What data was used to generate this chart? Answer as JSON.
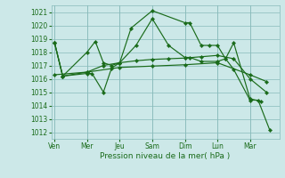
{
  "xlabel": "Pression niveau de la mer( hPa )",
  "background_color": "#cce8e8",
  "grid_color": "#88bbbb",
  "line_color": "#1a6b1a",
  "ylim": [
    1011.5,
    1021.5
  ],
  "yticks": [
    1012,
    1013,
    1014,
    1015,
    1016,
    1017,
    1018,
    1019,
    1020,
    1021
  ],
  "day_labels": [
    "Ven",
    "Mer",
    "Jeu",
    "Sam",
    "Dim",
    "Lun",
    "Mar"
  ],
  "day_positions": [
    0,
    2,
    4,
    6,
    8,
    10,
    12
  ],
  "xlim": [
    -0.2,
    13.8
  ],
  "series": [
    {
      "x": [
        0,
        0.5,
        2,
        2.5,
        3.0,
        3.5,
        4.0,
        4.7,
        6.0,
        8.0,
        8.3,
        9.0,
        9.5,
        10.0,
        10.5,
        11.0,
        12.0,
        12.7
      ],
      "y": [
        1018.7,
        1016.2,
        1018.0,
        1018.8,
        1017.2,
        1017.0,
        1017.2,
        1019.8,
        1021.1,
        1020.2,
        1020.2,
        1018.5,
        1018.5,
        1018.5,
        1017.5,
        1018.7,
        1014.5,
        1014.3
      ]
    },
    {
      "x": [
        0,
        0.5,
        2,
        2.3,
        3.0,
        3.5,
        4.0,
        5.0,
        6.0,
        7.0,
        8.0,
        8.3,
        9.0,
        10.0,
        10.5,
        11.0,
        12.0,
        12.5,
        13.2
      ],
      "y": [
        1018.7,
        1016.2,
        1016.4,
        1016.4,
        1015.0,
        1016.8,
        1017.2,
        1018.5,
        1020.5,
        1018.5,
        1017.6,
        1017.6,
        1017.3,
        1017.3,
        1017.5,
        1016.7,
        1014.4,
        1014.4,
        1012.2
      ]
    },
    {
      "x": [
        0,
        0.5,
        2,
        3,
        4,
        5,
        6,
        7,
        8,
        9,
        10,
        11,
        12,
        13
      ],
      "y": [
        1018.7,
        1016.2,
        1016.5,
        1017.0,
        1017.2,
        1017.35,
        1017.45,
        1017.5,
        1017.55,
        1017.65,
        1017.75,
        1017.5,
        1016.0,
        1015.0
      ]
    },
    {
      "x": [
        0,
        2,
        4,
        6,
        8,
        10,
        12,
        13
      ],
      "y": [
        1016.3,
        1016.5,
        1016.85,
        1016.95,
        1017.05,
        1017.2,
        1016.3,
        1015.8
      ]
    }
  ]
}
